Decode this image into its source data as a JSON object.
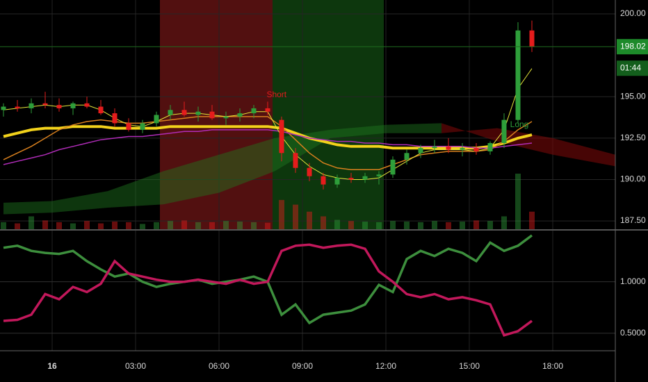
{
  "chart_data": {
    "type": "candlestick",
    "xlim": [
      -1.875,
      20.25
    ],
    "xticks": [
      {
        "value": 0,
        "label": "16"
      },
      {
        "value": 3,
        "label": "03:00"
      },
      {
        "value": 6,
        "label": "06:00"
      },
      {
        "value": 9,
        "label": "09:00"
      },
      {
        "value": 12,
        "label": "12:00"
      },
      {
        "value": 15,
        "label": "15:00"
      },
      {
        "value": 18,
        "label": "18:00"
      }
    ],
    "ylim": [
      187.0,
      200.84
    ],
    "yticks": [
      {
        "value": 187.5,
        "label": "187.50"
      },
      {
        "value": 190,
        "label": "190.00"
      },
      {
        "value": 192.5,
        "label": "192.50"
      },
      {
        "value": 195,
        "label": "195.00"
      },
      {
        "value": 200,
        "label": "200.00"
      }
    ],
    "grid": true,
    "up_color": "#2e9e3a",
    "down_color": "#e51c1c",
    "candles": {
      "x": [
        -1.75,
        -1.25,
        -0.75,
        -0.25,
        0.25,
        0.75,
        1.25,
        1.75,
        2.25,
        2.75,
        3.25,
        3.75,
        4.25,
        4.75,
        5.25,
        5.75,
        6.25,
        6.75,
        7.25,
        7.75,
        8.25,
        8.75,
        9.25,
        9.75,
        10.25,
        10.75,
        11.25,
        11.75,
        12.25,
        12.75,
        13.25,
        13.75,
        14.25,
        14.75,
        15.25,
        15.75,
        16.25,
        16.75,
        17.25
      ],
      "open": [
        194.2,
        194.4,
        194.3,
        194.6,
        194.5,
        194.3,
        194.6,
        194.4,
        194.0,
        193.4,
        193.0,
        193.4,
        193.9,
        194.2,
        193.9,
        194.1,
        193.7,
        193.8,
        194.0,
        194.3,
        193.6,
        191.6,
        190.7,
        190.2,
        189.7,
        190.1,
        190.0,
        190.2,
        190.3,
        191.2,
        191.6,
        191.9,
        192.0,
        191.8,
        191.9,
        191.7,
        192.2,
        193.6,
        199.0
      ],
      "high": [
        194.6,
        194.8,
        194.9,
        195.3,
        194.9,
        194.7,
        195.0,
        194.8,
        194.3,
        193.7,
        193.6,
        194.1,
        194.5,
        194.7,
        194.4,
        194.5,
        194.1,
        194.3,
        194.5,
        194.7,
        193.8,
        191.9,
        191.0,
        190.4,
        190.3,
        190.4,
        190.4,
        190.5,
        191.4,
        191.8,
        192.1,
        192.4,
        192.5,
        192.2,
        192.2,
        192.3,
        194.0,
        199.5,
        199.6
      ],
      "low": [
        193.8,
        194.1,
        194.0,
        194.3,
        194.1,
        193.9,
        194.3,
        193.9,
        193.2,
        192.9,
        192.8,
        193.2,
        193.6,
        193.8,
        193.5,
        193.6,
        193.3,
        193.5,
        193.7,
        193.9,
        191.1,
        190.4,
        189.9,
        189.4,
        189.5,
        189.8,
        189.8,
        189.7,
        190.1,
        190.9,
        191.3,
        191.6,
        191.6,
        191.4,
        191.5,
        191.5,
        191.9,
        193.4,
        197.7
      ],
      "close": [
        194.4,
        194.3,
        194.6,
        194.5,
        194.3,
        194.6,
        194.4,
        194.0,
        193.4,
        193.0,
        193.4,
        193.9,
        194.2,
        193.9,
        194.1,
        193.7,
        193.8,
        194.0,
        194.3,
        194.1,
        191.6,
        190.7,
        190.2,
        189.7,
        190.1,
        190.0,
        190.2,
        190.3,
        191.2,
        191.6,
        191.9,
        192.0,
        191.8,
        191.9,
        191.7,
        192.2,
        193.6,
        199.0,
        198.02
      ]
    },
    "volume": [
      12,
      10,
      22,
      15,
      12,
      10,
      14,
      10,
      13,
      12,
      9,
      12,
      14,
      15,
      12,
      12,
      14,
      13,
      12,
      11,
      50,
      42,
      30,
      22,
      16,
      14,
      13,
      12,
      14,
      13,
      12,
      14,
      12,
      13,
      15,
      14,
      22,
      95,
      30
    ],
    "lines": [
      {
        "color": "#f2d21b",
        "width": 4,
        "values": [
          192.6,
          192.8,
          193.0,
          193.1,
          193.1,
          193.2,
          193.2,
          193.2,
          193.1,
          193.1,
          193.1,
          193.1,
          193.2,
          193.2,
          193.2,
          193.2,
          193.2,
          193.2,
          193.2,
          193.2,
          193.1,
          192.8,
          192.5,
          192.3,
          192.1,
          192.0,
          192.0,
          192.0,
          191.9,
          191.9,
          191.9,
          191.9,
          191.9,
          191.9,
          191.9,
          192.0,
          192.2,
          192.5,
          192.7
        ]
      },
      {
        "color": "#d9801e",
        "width": 1.5,
        "values": [
          191.2,
          191.6,
          192.0,
          192.5,
          193.0,
          193.3,
          193.5,
          193.6,
          193.5,
          193.4,
          193.4,
          193.5,
          193.6,
          193.7,
          193.8,
          193.8,
          193.8,
          193.8,
          193.8,
          193.8,
          193.2,
          192.4,
          191.6,
          191.0,
          190.7,
          190.6,
          190.6,
          190.6,
          190.9,
          191.2,
          191.5,
          191.6,
          191.7,
          191.7,
          191.7,
          191.8,
          192.3,
          193.0,
          193.5
        ]
      },
      {
        "color": "#b02cb8",
        "width": 1.5,
        "values": [
          190.9,
          191.1,
          191.3,
          191.5,
          191.8,
          192.0,
          192.2,
          192.4,
          192.5,
          192.6,
          192.6,
          192.7,
          192.8,
          192.9,
          192.9,
          193.0,
          193.0,
          193.0,
          193.0,
          193.0,
          192.9,
          192.7,
          192.5,
          192.4,
          192.3,
          192.3,
          192.2,
          192.2,
          192.1,
          192.1,
          192.0,
          192.0,
          192.0,
          192.0,
          191.9,
          191.9,
          192.0,
          192.1,
          192.2
        ]
      },
      {
        "color": "#e8e83a",
        "width": 1,
        "values": [
          194.2,
          194.3,
          194.4,
          194.5,
          194.4,
          194.5,
          194.5,
          194.2,
          193.7,
          193.3,
          193.2,
          193.5,
          193.9,
          194.0,
          194.0,
          193.9,
          193.8,
          193.9,
          194.1,
          194.1,
          192.6,
          191.5,
          190.8,
          190.3,
          190.1,
          190.0,
          190.0,
          190.1,
          190.6,
          191.1,
          191.6,
          191.8,
          191.8,
          191.8,
          191.7,
          191.9,
          193.0,
          195.5,
          196.7
        ]
      }
    ],
    "cloud": {
      "x": [
        -1.75,
        0,
        2,
        4,
        6,
        8,
        10,
        12,
        14,
        16,
        18,
        20.25
      ],
      "span_a": [
        188.6,
        188.7,
        189.3,
        190.5,
        191.5,
        192.5,
        193.0,
        193.3,
        193.4,
        192.3,
        191.5,
        190.8
      ],
      "span_b": [
        187.9,
        188.0,
        188.3,
        188.5,
        189.2,
        190.5,
        192.5,
        192.8,
        192.8,
        193.1,
        192.5,
        191.5
      ],
      "up_color": "rgba(30,120,30,0.45)",
      "down_color": "rgba(130,10,10,0.55)"
    },
    "zones": [
      {
        "from": 3.875,
        "to": 7.925,
        "color": "rgba(150,30,30,0.55)"
      },
      {
        "from": 7.925,
        "to": 11.925,
        "color": "rgba(25,110,25,0.5)"
      }
    ],
    "annotations": [
      {
        "text": "Short",
        "x": 8.07,
        "y": 195.1,
        "color": "#e51c1c"
      },
      {
        "text": "Long",
        "x": 16.8,
        "y": 193.3,
        "color": "#2e9e3a"
      }
    ],
    "last_price": 198.02,
    "countdown": "01:44",
    "indicator": {
      "ylim": [
        0.33,
        1.49
      ],
      "yticks": [
        {
          "value": 0.5,
          "label": "0.5000"
        },
        {
          "value": 1,
          "label": "1.0000"
        }
      ],
      "series": [
        {
          "color": "#3d8f3d",
          "values": [
            1.33,
            1.35,
            1.3,
            1.28,
            1.27,
            1.3,
            1.2,
            1.12,
            1.05,
            1.08,
            1.0,
            0.95,
            0.98,
            1.0,
            1.02,
            0.98,
            1.0,
            1.02,
            1.05,
            1.0,
            0.68,
            0.78,
            0.6,
            0.68,
            0.7,
            0.72,
            0.78,
            0.97,
            0.9,
            1.22,
            1.3,
            1.25,
            1.32,
            1.28,
            1.2,
            1.38,
            1.3,
            1.35,
            1.45
          ]
        },
        {
          "color": "#c2185b",
          "values": [
            0.62,
            0.63,
            0.68,
            0.88,
            0.83,
            0.95,
            0.9,
            0.98,
            1.2,
            1.08,
            1.05,
            1.02,
            1.0,
            1.0,
            1.02,
            1.0,
            0.98,
            1.02,
            0.98,
            1.0,
            1.3,
            1.35,
            1.36,
            1.33,
            1.35,
            1.36,
            1.32,
            1.1,
            1.0,
            0.88,
            0.85,
            0.88,
            0.83,
            0.85,
            0.82,
            0.78,
            0.48,
            0.52,
            0.62
          ]
        }
      ]
    }
  }
}
